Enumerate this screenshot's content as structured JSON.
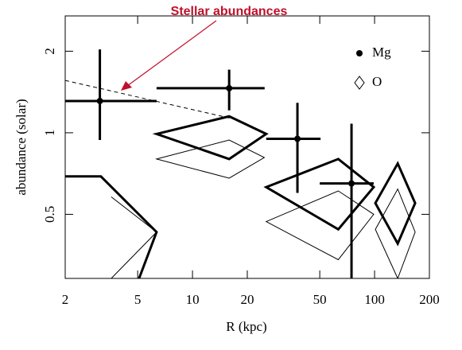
{
  "chart_data": {
    "type": "scatter",
    "annotation": "Stellar abundances",
    "xlabel": "R (kpc)",
    "ylabel": "abundance (solar)",
    "xscale": "log",
    "yscale": "log",
    "xlim": [
      2,
      200
    ],
    "ylim": [
      0.29,
      2.7
    ],
    "xticks": [
      2,
      5,
      10,
      20,
      50,
      100,
      200
    ],
    "yticks": [
      0.5,
      1,
      2
    ],
    "series": [
      {
        "name": "Mg",
        "marker": "dot",
        "color": "#000",
        "x": [
          3.1,
          15.9,
          37.7,
          74.7
        ],
        "values": [
          1.31,
          1.46,
          0.95,
          0.65
        ],
        "x_low": [
          2.0,
          6.35,
          25.4,
          50.0
        ],
        "x_high": [
          6.35,
          24.9,
          50.5,
          98.9
        ],
        "y_low": [
          0.94,
          1.21,
          0.6,
          0.29
        ],
        "y_high": [
          2.03,
          1.71,
          1.29,
          1.08
        ]
      },
      {
        "name": "O",
        "marker": "diamond",
        "color": "#000",
        "shapes": [
          {
            "style": "thick",
            "x": [
              6.35,
              15.9,
              25.4,
              15.9
            ],
            "values": [
              0.99,
              1.15,
              0.99,
              0.8
            ]
          },
          {
            "style": "thin",
            "x": [
              6.35,
              15.9,
              24.8,
              15.9
            ],
            "values": [
              0.8,
              0.94,
              0.81,
              0.68
            ]
          },
          {
            "style": "thick",
            "x": [
              25.4,
              63.2,
              98.9,
              63.2
            ],
            "values": [
              0.63,
              0.8,
              0.63,
              0.44
            ]
          },
          {
            "style": "thin",
            "x": [
              25.4,
              63.2,
              98.9,
              63.2
            ],
            "values": [
              0.47,
              0.61,
              0.5,
              0.34
            ]
          },
          {
            "style": "thick",
            "x": [
              101,
              134,
              167,
              134
            ],
            "values": [
              0.55,
              0.77,
              0.55,
              0.39
            ]
          },
          {
            "style": "thin",
            "x": [
              101,
              134,
              167,
              134
            ],
            "values": [
              0.44,
              0.62,
              0.43,
              0.29
            ]
          }
        ]
      }
    ],
    "lines": [
      {
        "style": "thick",
        "x": [
          2.0,
          3.14,
          6.35,
          5.09
        ],
        "values": [
          0.69,
          0.69,
          0.43,
          0.29
        ]
      },
      {
        "style": "thin",
        "x": [
          3.58,
          6.35,
          3.58
        ],
        "values": [
          0.58,
          0.43,
          0.29
        ]
      },
      {
        "style": "dashed",
        "x": [
          2.0,
          16.3
        ],
        "values": [
          1.56,
          1.13
        ]
      }
    ]
  }
}
